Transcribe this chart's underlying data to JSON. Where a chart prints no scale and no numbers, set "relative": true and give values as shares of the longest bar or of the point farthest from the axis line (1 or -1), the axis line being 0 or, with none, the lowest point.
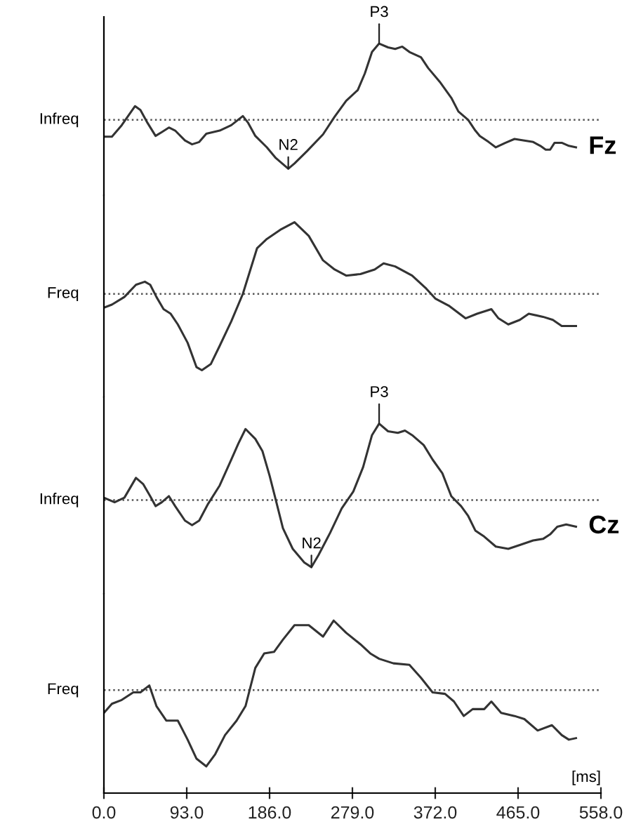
{
  "chart_data": [
    {
      "type": "line",
      "relative": true,
      "xlim": [
        0,
        558
      ],
      "tick_labels": false,
      "line_style": "solid",
      "marker": "none",
      "legend": false,
      "ref_lines": [
        {
          "axis": "y",
          "value": 0,
          "line_style": "dotted",
          "color": "#555555"
        }
      ],
      "annotations": [
        {
          "text": "N2",
          "x": 207,
          "y": -0.64
        },
        {
          "text": "P3",
          "x": 309,
          "y": 1.0
        },
        "Fz"
      ],
      "x": [
        0,
        9,
        20,
        35,
        41,
        49,
        58,
        65,
        73,
        80,
        91,
        99,
        107,
        115,
        130,
        143,
        156,
        162,
        170,
        183,
        193,
        207,
        214,
        228,
        246,
        259,
        272,
        285,
        293,
        301,
        309,
        319,
        327,
        335,
        343,
        356,
        364,
        377,
        390,
        398,
        409,
        417,
        422,
        432,
        440,
        451,
        461,
        472,
        482,
        490,
        496,
        501,
        506,
        514,
        522,
        530
      ],
      "series": [
        {
          "name": "Infreq",
          "color": "#333333",
          "values": [
            -0.22,
            -0.22,
            -0.07,
            0.18,
            0.13,
            -0.04,
            -0.21,
            -0.16,
            -0.1,
            -0.14,
            -0.27,
            -0.32,
            -0.29,
            -0.18,
            -0.14,
            -0.07,
            0.05,
            -0.04,
            -0.21,
            -0.36,
            -0.5,
            -0.64,
            -0.57,
            -0.41,
            -0.19,
            0.04,
            0.25,
            0.39,
            0.61,
            0.89,
            1.0,
            0.95,
            0.93,
            0.96,
            0.89,
            0.82,
            0.68,
            0.5,
            0.29,
            0.11,
            0.0,
            -0.14,
            -0.21,
            -0.29,
            -0.36,
            -0.3,
            -0.25,
            -0.27,
            -0.29,
            -0.34,
            -0.39,
            -0.39,
            -0.3,
            -0.3,
            -0.34,
            -0.36
          ]
        }
      ]
    },
    {
      "type": "line",
      "relative": true,
      "xlim": [
        0,
        558
      ],
      "tick_labels": false,
      "line_style": "solid",
      "marker": "none",
      "legend": false,
      "ref_lines": [
        {
          "axis": "y",
          "value": 0,
          "line_style": "dotted",
          "color": "#555555"
        }
      ],
      "x": [
        0,
        9,
        23,
        36,
        46,
        52,
        59,
        67,
        75,
        83,
        94,
        104,
        110,
        120,
        130,
        143,
        156,
        172,
        183,
        198,
        214,
        230,
        246,
        259,
        272,
        288,
        304,
        314,
        327,
        346,
        361,
        372,
        388,
        406,
        419,
        435,
        443,
        454,
        467,
        477,
        493,
        504,
        514,
        522,
        530
      ],
      "series": [
        {
          "name": "Freq",
          "color": "#333333",
          "values": [
            -0.18,
            -0.14,
            -0.04,
            0.12,
            0.16,
            0.12,
            -0.04,
            -0.2,
            -0.26,
            -0.4,
            -0.64,
            -0.96,
            -1.0,
            -0.92,
            -0.68,
            -0.36,
            0.0,
            0.6,
            0.72,
            0.84,
            0.94,
            0.76,
            0.44,
            0.32,
            0.24,
            0.26,
            0.32,
            0.4,
            0.36,
            0.24,
            0.08,
            -0.06,
            -0.16,
            -0.32,
            -0.26,
            -0.2,
            -0.32,
            -0.4,
            -0.34,
            -0.26,
            -0.3,
            -0.34,
            -0.42,
            -0.42,
            -0.42
          ]
        }
      ]
    },
    {
      "type": "line",
      "relative": true,
      "xlim": [
        0,
        558
      ],
      "tick_labels": false,
      "line_style": "solid",
      "marker": "none",
      "legend": false,
      "ref_lines": [
        {
          "axis": "y",
          "value": 0,
          "line_style": "dotted",
          "color": "#555555"
        }
      ],
      "annotations": [
        {
          "text": "N2",
          "x": 233,
          "y": -0.88
        },
        {
          "text": "P3",
          "x": 309,
          "y": 1.0
        },
        "Cz"
      ],
      "x": [
        0,
        12,
        23,
        36,
        44,
        52,
        58,
        65,
        73,
        80,
        91,
        99,
        107,
        117,
        130,
        143,
        151,
        159,
        170,
        178,
        186,
        193,
        201,
        212,
        225,
        233,
        241,
        254,
        267,
        280,
        291,
        301,
        309,
        319,
        330,
        338,
        346,
        359,
        369,
        380,
        390,
        401,
        409,
        417,
        427,
        440,
        454,
        467,
        482,
        493,
        501,
        509,
        519,
        530
      ],
      "series": [
        {
          "name": "Infreq",
          "color": "#333333",
          "values": [
            0.03,
            -0.03,
            0.03,
            0.29,
            0.21,
            0.05,
            -0.08,
            -0.03,
            0.05,
            -0.08,
            -0.27,
            -0.33,
            -0.27,
            -0.05,
            0.19,
            0.53,
            0.74,
            0.93,
            0.8,
            0.64,
            0.32,
            0.0,
            -0.37,
            -0.64,
            -0.82,
            -0.88,
            -0.72,
            -0.43,
            -0.11,
            0.11,
            0.43,
            0.85,
            1.0,
            0.9,
            0.88,
            0.91,
            0.85,
            0.72,
            0.53,
            0.35,
            0.05,
            -0.08,
            -0.21,
            -0.4,
            -0.48,
            -0.61,
            -0.64,
            -0.59,
            -0.53,
            -0.51,
            -0.45,
            -0.35,
            -0.32,
            -0.35
          ]
        }
      ]
    },
    {
      "type": "line",
      "relative": true,
      "xlim": [
        0,
        558
      ],
      "tick_labels": "x",
      "xlabel": "[ms]",
      "line_style": "solid",
      "marker": "none",
      "legend": false,
      "ref_lines": [
        {
          "axis": "y",
          "value": 0,
          "line_style": "dotted",
          "color": "#555555"
        }
      ],
      "xticks": [
        {
          "value": 0,
          "label": "0.0"
        },
        {
          "value": 93,
          "label": "93.0"
        },
        {
          "value": 186,
          "label": "186.0"
        },
        {
          "value": 279,
          "label": "279.0"
        },
        {
          "value": 372,
          "label": "372.0"
        },
        {
          "value": 465,
          "label": "465.0"
        },
        {
          "value": 558,
          "label": "558.0"
        }
      ],
      "x": [
        0,
        9,
        20,
        33,
        41,
        51,
        59,
        70,
        83,
        94,
        104,
        115,
        125,
        136,
        149,
        159,
        170,
        180,
        191,
        201,
        214,
        230,
        246,
        258,
        272,
        288,
        299,
        309,
        325,
        343,
        356,
        369,
        383,
        393,
        404,
        414,
        427,
        435,
        446,
        461,
        472,
        487,
        503,
        514,
        522,
        530
      ],
      "series": [
        {
          "name": "Freq",
          "color": "#333333",
          "values": [
            -0.3,
            -0.18,
            -0.13,
            -0.03,
            -0.03,
            0.06,
            -0.21,
            -0.4,
            -0.4,
            -0.65,
            -0.9,
            -1.0,
            -0.84,
            -0.59,
            -0.4,
            -0.21,
            0.29,
            0.48,
            0.5,
            0.66,
            0.85,
            0.85,
            0.7,
            0.91,
            0.75,
            0.6,
            0.48,
            0.41,
            0.35,
            0.33,
            0.16,
            -0.03,
            -0.05,
            -0.15,
            -0.34,
            -0.25,
            -0.25,
            -0.15,
            -0.3,
            -0.34,
            -0.38,
            -0.53,
            -0.46,
            -0.59,
            -0.65,
            -0.63
          ]
        }
      ]
    }
  ]
}
